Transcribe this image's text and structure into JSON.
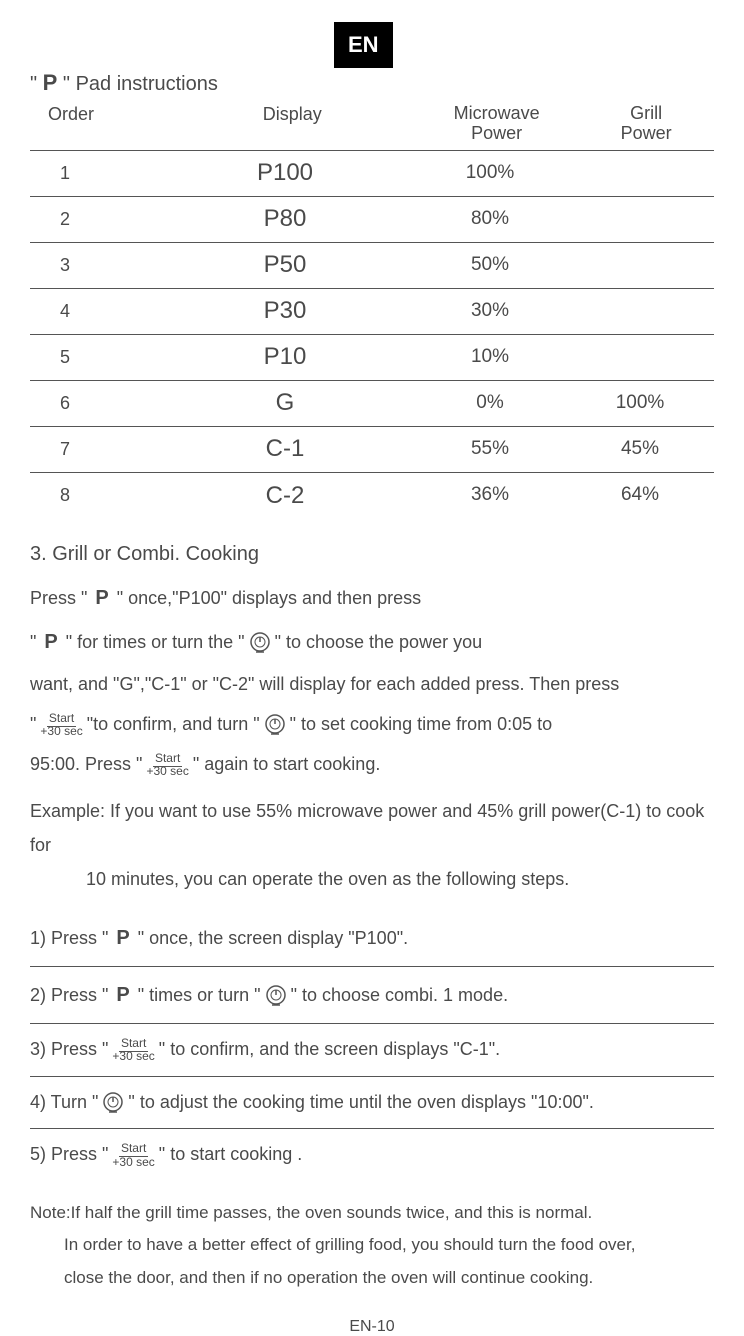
{
  "lang_badge": "EN",
  "title_prefix": "\"",
  "title_p": "P",
  "title_suffix": "\"  Pad instructions",
  "headers": {
    "order": "Order",
    "display": "Display",
    "microwave": "Microwave\nPower",
    "grill": "Grill\nPower"
  },
  "rows": [
    {
      "order": "1",
      "display": "P100",
      "mw": "100%",
      "grill": ""
    },
    {
      "order": "2",
      "display": "P80",
      "mw": "80%",
      "grill": ""
    },
    {
      "order": "3",
      "display": "P50",
      "mw": "50%",
      "grill": ""
    },
    {
      "order": "4",
      "display": "P30",
      "mw": "30%",
      "grill": ""
    },
    {
      "order": "5",
      "display": "P10",
      "mw": "10%",
      "grill": ""
    },
    {
      "order": "6",
      "display": "G",
      "mw": "0%",
      "grill": "100%"
    },
    {
      "order": "7",
      "display": "C-1",
      "mw": "55%",
      "grill": "45%"
    },
    {
      "order": "8",
      "display": "C-2",
      "mw": "36%",
      "grill": "64%"
    }
  ],
  "section_title": "3. Grill or Combi. Cooking",
  "start_label": {
    "top": "Start",
    "bot": "+30 sec"
  },
  "para": {
    "p1a": "Press \"",
    "p1b": "\" once,\"P100\" displays and then press",
    "p2a": "\"",
    "p2b": "\" for times or turn the \"",
    "p2c": "\" to choose the power you",
    "p3": "want, and \"G\",\"C-1\" or \"C-2\" will display for each added press. Then press",
    "p4a": "\"",
    "p4b": "\"to confirm, and turn \"",
    "p4c": "\"  to set cooking time from 0:05 to",
    "p5a": "95:00. Press \"",
    "p5b": "\" again to start cooking."
  },
  "example": {
    "line1": "Example: If you want to use 55% microwave power and 45% grill power(C-1)  to cook for",
    "line2": "10 minutes, you can operate the oven as the following steps."
  },
  "steps": {
    "s1a": "1) Press \"",
    "s1b": "\" once, the screen display \"P100\".",
    "s2a": "2) Press \"",
    "s2b": "\" times or turn \"",
    "s2c": "\" to choose combi. 1 mode.",
    "s3a": "3) Press \"",
    "s3b": "\" to confirm, and the screen displays \"C-1\".",
    "s4a": "4) Turn \"",
    "s4b": "\" to adjust the cooking time until the oven displays \"10:00\".",
    "s5a": "5) Press \"",
    "s5b": "\" to start cooking ."
  },
  "note": {
    "line1": "Note:If half the grill time passes, the oven sounds twice, and this is normal.",
    "line2": "In order  to have a better effect of grilling food, you should turn the food over,",
    "line3": "close the door, and then if no operation the oven will continue cooking."
  },
  "page_num": "EN-10",
  "p_symbol": "P"
}
